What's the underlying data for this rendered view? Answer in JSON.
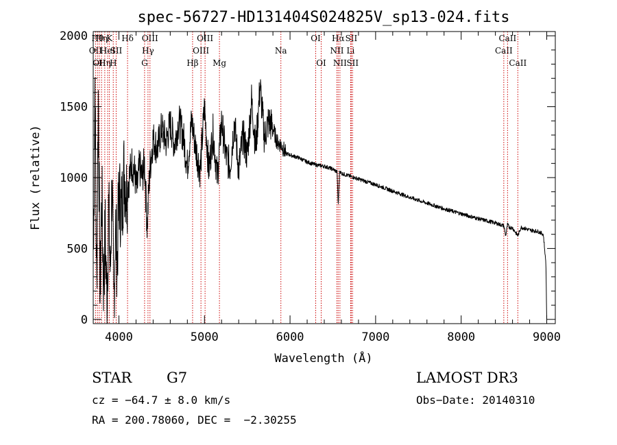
{
  "chart_data": {
    "type": "line",
    "title": "spec-56727-HD131404S024825V_sp13-024.fits",
    "xlabel": "Wavelength (Å)",
    "ylabel": "Flux (relative)",
    "xlim": [
      3700,
      9100
    ],
    "ylim": [
      -30,
      2030
    ],
    "x_ticks": [
      4000,
      5000,
      6000,
      7000,
      8000,
      9000
    ],
    "y_ticks": [
      0,
      500,
      1000,
      1500,
      2000
    ],
    "grid": false,
    "series": [
      {
        "name": "spectrum",
        "x": [
          3700,
          3720,
          3740,
          3760,
          3780,
          3800,
          3820,
          3840,
          3860,
          3880,
          3900,
          3920,
          3940,
          3960,
          3980,
          4000,
          4030,
          4060,
          4090,
          4120,
          4150,
          4180,
          4210,
          4240,
          4270,
          4300,
          4330,
          4360,
          4400,
          4450,
          4500,
          4550,
          4600,
          4650,
          4700,
          4750,
          4800,
          4850,
          4900,
          4950,
          5000,
          5050,
          5100,
          5150,
          5200,
          5250,
          5300,
          5350,
          5400,
          5450,
          5500,
          5550,
          5600,
          5650,
          5700,
          5750,
          5800,
          5850,
          5900,
          5950,
          6000,
          6100,
          6200,
          6300,
          6400,
          6500,
          6550,
          6563,
          6580,
          6600,
          6700,
          6800,
          6900,
          7000,
          7200,
          7400,
          7600,
          7800,
          8000,
          8200,
          8400,
          8498,
          8520,
          8542,
          8560,
          8600,
          8662,
          8700,
          8800,
          8900,
          8960,
          8990,
          9000
        ],
        "values": [
          100,
          1700,
          200,
          1650,
          150,
          900,
          250,
          600,
          120,
          800,
          300,
          1000,
          60,
          700,
          400,
          900,
          750,
          1050,
          900,
          1000,
          1100,
          1050,
          900,
          1080,
          1000,
          1100,
          650,
          1050,
          1280,
          1200,
          1350,
          1250,
          1380,
          1230,
          1400,
          1300,
          1080,
          1400,
          1200,
          1050,
          1500,
          1050,
          1320,
          1000,
          1400,
          1150,
          1080,
          1400,
          1050,
          1300,
          1150,
          1550,
          1200,
          1650,
          1280,
          1400,
          1350,
          1250,
          1230,
          1170,
          1160,
          1140,
          1110,
          1090,
          1080,
          1060,
          1040,
          800,
          1050,
          1030,
          1010,
          990,
          970,
          950,
          905,
          860,
          820,
          780,
          745,
          710,
          680,
          660,
          590,
          670,
          650,
          645,
          590,
          650,
          630,
          620,
          600,
          400,
          0
        ]
      }
    ],
    "line_markers": [
      {
        "w": 3727,
        "row": 1,
        "label": "OII"
      },
      {
        "w": 3750,
        "row": 0,
        "label": "Hθ"
      },
      {
        "w": 3771,
        "row": 2,
        "label": "OII"
      },
      {
        "w": 3797,
        "row": 0,
        "label": "Hη"
      },
      {
        "w": 3835,
        "row": 2,
        "label": "Hη"
      },
      {
        "w": 3869,
        "row": 1,
        "label": "HeI"
      },
      {
        "w": 3889,
        "row": 0,
        "label": "K"
      },
      {
        "w": 3934,
        "row": 2,
        "label": "H"
      },
      {
        "w": 3968,
        "row": 1,
        "label": "SII"
      },
      {
        "w": 4101,
        "row": 0,
        "label": "Hδ"
      },
      {
        "w": 4300,
        "row": 2,
        "label": "G"
      },
      {
        "w": 4340,
        "row": 1,
        "label": "Hγ"
      },
      {
        "w": 4363,
        "row": 0,
        "label": "OIII"
      },
      {
        "w": 4861,
        "row": 2,
        "label": "Hβ"
      },
      {
        "w": 4959,
        "row": 1,
        "label": "OIII"
      },
      {
        "w": 5007,
        "row": 0,
        "label": "OIII"
      },
      {
        "w": 5175,
        "row": 2,
        "label": "Mg"
      },
      {
        "w": 5893,
        "row": 1,
        "label": "Na"
      },
      {
        "w": 6300,
        "row": 0,
        "label": "OI"
      },
      {
        "w": 6364,
        "row": 2,
        "label": "OI"
      },
      {
        "w": 6548,
        "row": 1,
        "label": "NII"
      },
      {
        "w": 6563,
        "row": 0,
        "label": "Hα"
      },
      {
        "w": 6583,
        "row": 2,
        "label": "NII"
      },
      {
        "w": 6708,
        "row": 1,
        "label": "Li"
      },
      {
        "w": 6716,
        "row": 0,
        "label": "SII"
      },
      {
        "w": 6731,
        "row": 2,
        "label": "SII"
      },
      {
        "w": 8498,
        "row": 1,
        "label": "CaII"
      },
      {
        "w": 8542,
        "row": 0,
        "label": "CaII"
      },
      {
        "w": 8662,
        "row": 2,
        "label": "CaII"
      }
    ]
  },
  "info": {
    "object_class": "STAR",
    "subclass": "G7",
    "survey": "LAMOST DR3",
    "cz": "cz = −64.7 ± 8.0 km/s",
    "obs_date": "Obs−Date: 20140310",
    "coords": "RA = 200.78060, DEC =  −2.30255"
  },
  "colors": {
    "spectrum": "#000000",
    "marker": "#cc0000",
    "axis": "#000000"
  }
}
